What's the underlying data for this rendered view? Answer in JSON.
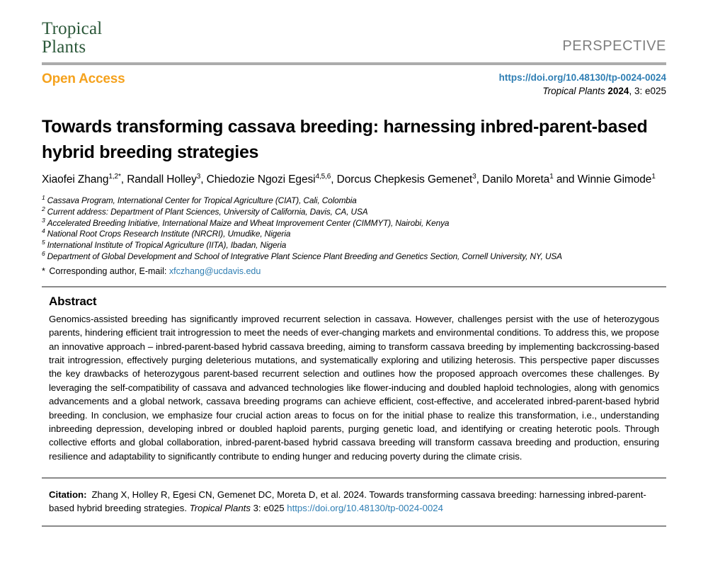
{
  "colors": {
    "logo_green": "#2a5738",
    "accent_orange": "#f5a21d",
    "link_blue": "#2e7eb3",
    "article_type_gray": "#7e7e7e",
    "header_rule_gray": "#ababab",
    "thin_rule_gray": "#8a8a8a"
  },
  "header": {
    "journal_line1": "Tropical",
    "journal_line2": "Plants",
    "article_type": "PERSPECTIVE"
  },
  "access_bar": {
    "open_access": "Open Access",
    "doi": "https://doi.org/10.48130/tp-0024-0024",
    "journal_ref": {
      "journal": "Tropical Plants ",
      "year": "2024",
      "rest": ", 3: e025"
    }
  },
  "article": {
    "title": "Towards transforming cassava breeding: harnessing inbred-parent-based hybrid breeding strategies",
    "authors": [
      {
        "name": "Xiaofei Zhang",
        "sup": "1,2*"
      },
      {
        "name": "Randall Holley",
        "sup": "3"
      },
      {
        "name": "Chiedozie Ngozi Egesi",
        "sup": "4,5,6"
      },
      {
        "name": "Dorcus Chepkesis Gemenet",
        "sup": "3"
      },
      {
        "name": "Danilo Moreta",
        "sup": "1"
      },
      {
        "name": "Winnie Gimode",
        "sup": "1"
      }
    ],
    "author_separator": ", ",
    "author_last_separator": " and ",
    "affiliations": [
      {
        "num": "1",
        "text": "Cassava Program, International Center for Tropical Agriculture (CIAT), Cali, Colombia"
      },
      {
        "num": "2",
        "text": "Current address: Department of Plant Sciences, University of California, Davis, CA, USA"
      },
      {
        "num": "3",
        "text": "Accelerated Breeding Initiative, International Maize and Wheat Improvement Center (CIMMYT), Nairobi, Kenya"
      },
      {
        "num": "4",
        "text": "National Root Crops Research Institute (NRCRI), Umudike, Nigeria"
      },
      {
        "num": "5",
        "text": "International Institute of Tropical Agriculture (IITA), Ibadan, Nigeria"
      },
      {
        "num": "6",
        "text": "Department of Global Development and School of Integrative Plant Science Plant Breeding and Genetics Section, Cornell University, NY, USA"
      }
    ],
    "corresponding": {
      "star": "*",
      "prefix": " Corresponding author, E-mail: ",
      "email": "xfczhang@ucdavis.edu"
    }
  },
  "abstract": {
    "heading": "Abstract",
    "text": "Genomics-assisted breeding has significantly improved recurrent selection in cassava. However, challenges persist with the use of heterozygous parents, hindering efficient trait introgression to meet the needs of ever-changing markets and environmental conditions. To address this, we propose an innovative approach – inbred-parent-based hybrid cassava breeding, aiming to transform cassava breeding by implementing backcrossing-based trait introgression, effectively purging deleterious mutations, and systematically exploring and utilizing heterosis. This perspective paper discusses the key drawbacks of heterozygous parent-based recurrent selection and outlines how the proposed approach overcomes these challenges. By leveraging the self-compatibility of cassava and advanced technologies like flower-inducing and doubled haploid technologies, along with genomics advancements and a global network, cassava breeding programs can achieve efficient, cost-effective, and accelerated inbred-parent-based hybrid breeding. In conclusion, we emphasize four crucial action areas to focus on for the initial phase to realize this transformation, i.e., understanding inbreeding depression, developing inbred or doubled haploid parents, purging genetic load, and identifying or creating heterotic pools. Through collective efforts and global collaboration, inbred-parent-based hybrid cassava breeding will transform cassava breeding and production, ensuring resilience and adaptability to significantly contribute to ending hunger and reducing poverty during the climate crisis."
  },
  "citation": {
    "label": "Citation:",
    "before_journal": "Zhang X, Holley R, Egesi CN, Gemenet DC, Moreta D, et al. 2024. Towards transforming cassava breeding: harnessing inbred-parent-based hybrid breeding strategies. ",
    "journal": "Tropical Plants",
    "after_journal": " 3: e025 ",
    "doi": "https://doi.org/10.48130/tp-0024-0024"
  }
}
